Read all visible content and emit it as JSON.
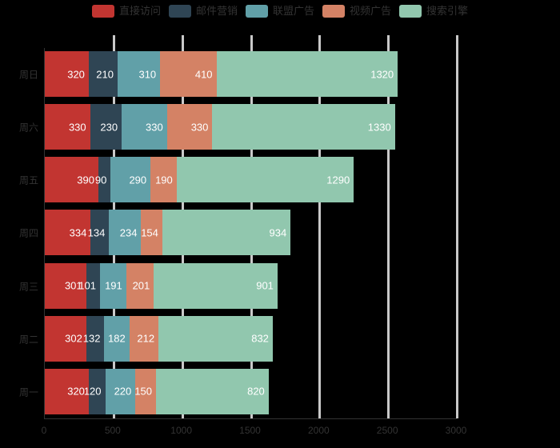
{
  "chart_data": {
    "type": "bar",
    "stacked": true,
    "orientation": "horizontal",
    "title": "",
    "legend_position": "top",
    "background_color": "#000000",
    "gridline_color": "#c9c9c9",
    "axis_text_color": "#333333",
    "bar_label_color": "#ffffff",
    "categories_top_to_bottom": [
      "周日",
      "周六",
      "周五",
      "周四",
      "周三",
      "周二",
      "周一"
    ],
    "series": [
      {
        "name": "直接访问",
        "color": "#c23531",
        "values": [
          320,
          330,
          390,
          334,
          301,
          302,
          320
        ]
      },
      {
        "name": "邮件营销",
        "color": "#2f4554",
        "values": [
          210,
          230,
          90,
          134,
          101,
          132,
          120
        ]
      },
      {
        "name": "联盟广告",
        "color": "#61a0a8",
        "values": [
          310,
          330,
          290,
          234,
          191,
          182,
          220
        ]
      },
      {
        "name": "视频广告",
        "color": "#d48265",
        "values": [
          410,
          330,
          190,
          154,
          201,
          212,
          150
        ]
      },
      {
        "name": "搜索引擎",
        "color": "#91c7ae",
        "values": [
          1320,
          1330,
          1290,
          934,
          901,
          832,
          820
        ]
      }
    ],
    "totals_top_to_bottom": [
      2570,
      2550,
      2250,
      1790,
      1695,
      1660,
      1630
    ],
    "x_axis": {
      "min": 0,
      "max": 3000,
      "tick_interval": 500,
      "tick_labels": [
        "0",
        "500",
        "1000",
        "1500",
        "2000",
        "2500",
        "3000"
      ]
    },
    "grid": true
  }
}
